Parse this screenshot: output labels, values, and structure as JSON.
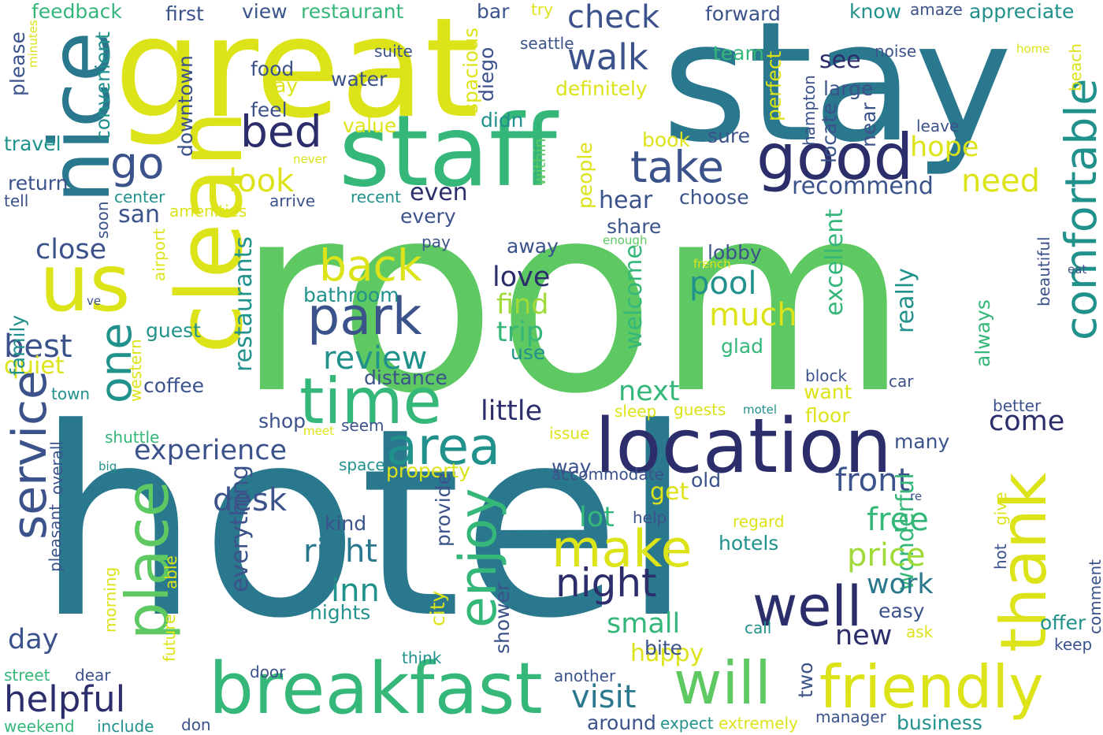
{
  "palette": {
    "c1": "#2a788e",
    "c2": "#5ec962",
    "c3": "#dce319",
    "c4": "#3b528b",
    "c5": "#2c2d6b",
    "c6": "#21918c",
    "c7": "#35b779",
    "c8": "#a0da39"
  },
  "words": [
    {
      "text": "hotel",
      "color": "c1"
    },
    {
      "text": "room",
      "color": "c2"
    },
    {
      "text": "stay",
      "color": "c1"
    },
    {
      "text": "great",
      "color": "c3"
    },
    {
      "text": "staff",
      "color": "c7"
    },
    {
      "text": "nice",
      "color": "c1"
    },
    {
      "text": "clean",
      "color": "c3"
    },
    {
      "text": "us",
      "color": "c3"
    },
    {
      "text": "location",
      "color": "c5"
    },
    {
      "text": "breakfast",
      "color": "c7"
    },
    {
      "text": "friendly",
      "color": "c3"
    },
    {
      "text": "good",
      "color": "c5"
    },
    {
      "text": "time",
      "color": "c7"
    },
    {
      "text": "comfortable",
      "color": "c6"
    },
    {
      "text": "thank",
      "color": "c3"
    },
    {
      "text": "service",
      "color": "c4"
    },
    {
      "text": "place",
      "color": "c2"
    },
    {
      "text": "will",
      "color": "c2"
    },
    {
      "text": "well",
      "color": "c5"
    },
    {
      "text": "park",
      "color": "c4"
    },
    {
      "text": "area",
      "color": "c6"
    },
    {
      "text": "enjoy",
      "color": "c7"
    },
    {
      "text": "make",
      "color": "c3"
    },
    {
      "text": "walk",
      "color": "c4"
    },
    {
      "text": "bed",
      "color": "c5"
    },
    {
      "text": "take",
      "color": "c4"
    },
    {
      "text": "go",
      "color": "c4"
    },
    {
      "text": "one",
      "color": "c6"
    },
    {
      "text": "back",
      "color": "c3"
    },
    {
      "text": "night",
      "color": "c5"
    },
    {
      "text": "helpful",
      "color": "c5"
    },
    {
      "text": "check",
      "color": "c4"
    },
    {
      "text": "experience",
      "color": "c4"
    },
    {
      "text": "visit",
      "color": "c1"
    },
    {
      "text": "front",
      "color": "c4"
    },
    {
      "text": "everything",
      "color": "c4"
    },
    {
      "text": "restaurants",
      "color": "c6"
    },
    {
      "text": "wonderful",
      "color": "c7"
    },
    {
      "text": "excellent",
      "color": "c7"
    },
    {
      "text": "review",
      "color": "c6"
    },
    {
      "text": "look",
      "color": "c3"
    },
    {
      "text": "recommend",
      "color": "c4"
    },
    {
      "text": "hope",
      "color": "c3"
    },
    {
      "text": "need",
      "color": "c3"
    },
    {
      "text": "free",
      "color": "c7"
    },
    {
      "text": "price",
      "color": "c8"
    },
    {
      "text": "pool",
      "color": "c6"
    },
    {
      "text": "much",
      "color": "c3"
    },
    {
      "text": "desk",
      "color": "c4"
    },
    {
      "text": "right",
      "color": "c1"
    },
    {
      "text": "inn",
      "color": "c6"
    },
    {
      "text": "best",
      "color": "c4"
    },
    {
      "text": "day",
      "color": "c4"
    },
    {
      "text": "close",
      "color": "c4"
    },
    {
      "text": "small",
      "color": "c7"
    },
    {
      "text": "work",
      "color": "c1"
    },
    {
      "text": "next",
      "color": "c7"
    },
    {
      "text": "little",
      "color": "c5"
    },
    {
      "text": "come",
      "color": "c5"
    },
    {
      "text": "new",
      "color": "c5"
    },
    {
      "text": "happy",
      "color": "c3"
    },
    {
      "text": "lot",
      "color": "c7"
    },
    {
      "text": "get",
      "color": "c3"
    },
    {
      "text": "welcome",
      "color": "c7"
    },
    {
      "text": "really",
      "color": "c6"
    },
    {
      "text": "always",
      "color": "c7"
    },
    {
      "text": "love",
      "color": "c5"
    },
    {
      "text": "find",
      "color": "c8"
    },
    {
      "text": "trip",
      "color": "c7"
    },
    {
      "text": "even",
      "color": "c5"
    },
    {
      "text": "hear",
      "color": "c4"
    },
    {
      "text": "quiet",
      "color": "c3"
    },
    {
      "text": "see",
      "color": "c5"
    },
    {
      "text": "san",
      "color": "c4"
    },
    {
      "text": "family",
      "color": "c6"
    },
    {
      "text": "please",
      "color": "c4"
    },
    {
      "text": "definitely",
      "color": "c3"
    },
    {
      "text": "convenient",
      "color": "c6"
    },
    {
      "text": "downtown",
      "color": "c4"
    },
    {
      "text": "feedback",
      "color": "c7"
    },
    {
      "text": "first",
      "color": "c4"
    },
    {
      "text": "view",
      "color": "c4"
    },
    {
      "text": "restaurant",
      "color": "c7"
    },
    {
      "text": "bar",
      "color": "c4"
    },
    {
      "text": "try",
      "color": "c3"
    },
    {
      "text": "forward",
      "color": "c4"
    },
    {
      "text": "know",
      "color": "c6"
    },
    {
      "text": "amaze",
      "color": "c4"
    },
    {
      "text": "appreciate",
      "color": "c6"
    },
    {
      "text": "home",
      "color": "c3"
    },
    {
      "text": "seattle",
      "color": "c4"
    },
    {
      "text": "suite",
      "color": "c4"
    },
    {
      "text": "team",
      "color": "c7"
    },
    {
      "text": "noise",
      "color": "c4"
    },
    {
      "text": "beach",
      "color": "c3"
    },
    {
      "text": "food",
      "color": "c4"
    },
    {
      "text": "water",
      "color": "c4"
    },
    {
      "text": "say",
      "color": "c3"
    },
    {
      "text": "large",
      "color": "c4"
    },
    {
      "text": "feel",
      "color": "c4"
    },
    {
      "text": "value",
      "color": "c3"
    },
    {
      "text": "diego",
      "color": "c4"
    },
    {
      "text": "spacious",
      "color": "c3"
    },
    {
      "text": "didn",
      "color": "c6"
    },
    {
      "text": "perfect",
      "color": "c3"
    },
    {
      "text": "hampton",
      "color": "c4"
    },
    {
      "text": "locate",
      "color": "c4"
    },
    {
      "text": "near",
      "color": "c4"
    },
    {
      "text": "sure",
      "color": "c4"
    },
    {
      "text": "leave",
      "color": "c4"
    },
    {
      "text": "travel",
      "color": "c6"
    },
    {
      "text": "book",
      "color": "c3"
    },
    {
      "text": "minutes",
      "color": "c3"
    },
    {
      "text": "return",
      "color": "c4"
    },
    {
      "text": "tell",
      "color": "c4"
    },
    {
      "text": "center",
      "color": "c6"
    },
    {
      "text": "amenities",
      "color": "c3"
    },
    {
      "text": "arrive",
      "color": "c4"
    },
    {
      "text": "recent",
      "color": "c6"
    },
    {
      "text": "within",
      "color": "c2"
    },
    {
      "text": "people",
      "color": "c3"
    },
    {
      "text": "choose",
      "color": "c4"
    },
    {
      "text": "every",
      "color": "c4"
    },
    {
      "text": "soon",
      "color": "c4"
    },
    {
      "text": "never",
      "color": "c3"
    },
    {
      "text": "share",
      "color": "c4"
    },
    {
      "text": "enough",
      "color": "c2"
    },
    {
      "text": "pay",
      "color": "c4"
    },
    {
      "text": "away",
      "color": "c4"
    },
    {
      "text": "lobby",
      "color": "c4"
    },
    {
      "text": "french",
      "color": "c3"
    },
    {
      "text": "airport",
      "color": "c3"
    },
    {
      "text": "bathroom",
      "color": "c6"
    },
    {
      "text": "guest",
      "color": "c6"
    },
    {
      "text": "glad",
      "color": "c7"
    },
    {
      "text": "use",
      "color": "c6"
    },
    {
      "text": "ve",
      "color": "c4"
    },
    {
      "text": "eat",
      "color": "c4"
    },
    {
      "text": "beautiful",
      "color": "c4"
    },
    {
      "text": "distance",
      "color": "c4"
    },
    {
      "text": "coffee",
      "color": "c4"
    },
    {
      "text": "block",
      "color": "c4"
    },
    {
      "text": "car",
      "color": "c4"
    },
    {
      "text": "want",
      "color": "c3"
    },
    {
      "text": "western",
      "color": "c3"
    },
    {
      "text": "town",
      "color": "c6"
    },
    {
      "text": "sleep",
      "color": "c3"
    },
    {
      "text": "guests",
      "color": "c3"
    },
    {
      "text": "motel",
      "color": "c6"
    },
    {
      "text": "floor",
      "color": "c3"
    },
    {
      "text": "better",
      "color": "c4"
    },
    {
      "text": "shop",
      "color": "c4"
    },
    {
      "text": "meet",
      "color": "c3"
    },
    {
      "text": "seem",
      "color": "c4"
    },
    {
      "text": "issue",
      "color": "c3"
    },
    {
      "text": "many",
      "color": "c4"
    },
    {
      "text": "way",
      "color": "c4"
    },
    {
      "text": "shuttle",
      "color": "c7"
    },
    {
      "text": "big",
      "color": "c6"
    },
    {
      "text": "overall",
      "color": "c4"
    },
    {
      "text": "space",
      "color": "c6"
    },
    {
      "text": "property",
      "color": "c3"
    },
    {
      "text": "accommodate",
      "color": "c4"
    },
    {
      "text": "old",
      "color": "c4"
    },
    {
      "text": "re",
      "color": "c4"
    },
    {
      "text": "provide",
      "color": "c4"
    },
    {
      "text": "kind",
      "color": "c4"
    },
    {
      "text": "help",
      "color": "c4"
    },
    {
      "text": "regard",
      "color": "c3"
    },
    {
      "text": "hotels",
      "color": "c6"
    },
    {
      "text": "give",
      "color": "c3"
    },
    {
      "text": "hot",
      "color": "c4"
    },
    {
      "text": "comment",
      "color": "c4"
    },
    {
      "text": "pleasant",
      "color": "c4"
    },
    {
      "text": "able",
      "color": "c3"
    },
    {
      "text": "morning",
      "color": "c3"
    },
    {
      "text": "future",
      "color": "c3"
    },
    {
      "text": "nights",
      "color": "c6"
    },
    {
      "text": "city",
      "color": "c3"
    },
    {
      "text": "easy",
      "color": "c4"
    },
    {
      "text": "call",
      "color": "c6"
    },
    {
      "text": "ask",
      "color": "c3"
    },
    {
      "text": "offer",
      "color": "c6"
    },
    {
      "text": "keep",
      "color": "c4"
    },
    {
      "text": "bite",
      "color": "c4"
    },
    {
      "text": "shower",
      "color": "c4"
    },
    {
      "text": "think",
      "color": "c6"
    },
    {
      "text": "street",
      "color": "c7"
    },
    {
      "text": "dear",
      "color": "c4"
    },
    {
      "text": "door",
      "color": "c4"
    },
    {
      "text": "another",
      "color": "c4"
    },
    {
      "text": "two",
      "color": "c4"
    },
    {
      "text": "weekend",
      "color": "c7"
    },
    {
      "text": "include",
      "color": "c6"
    },
    {
      "text": "don",
      "color": "c4"
    },
    {
      "text": "around",
      "color": "c4"
    },
    {
      "text": "expect",
      "color": "c6"
    },
    {
      "text": "extremely",
      "color": "c3"
    },
    {
      "text": "manager",
      "color": "c4"
    },
    {
      "text": "business",
      "color": "c6"
    }
  ]
}
